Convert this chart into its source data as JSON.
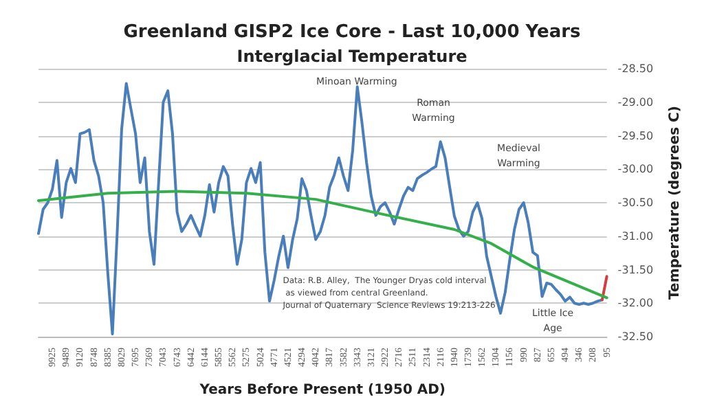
{
  "chart_data": {
    "type": "line",
    "title": "Greenland GISP2 Ice Core - Last 10,000 Years",
    "subtitle": "Interglacial Temperature",
    "xlabel": "Years Before Present (1950 AD)",
    "ylabel": "Temperature (degrees C)",
    "categories": [
      null,
      null,
      null,
      "9925",
      null,
      null,
      "9489",
      null,
      null,
      "9120",
      null,
      null,
      "8748",
      null,
      null,
      "8385",
      null,
      null,
      "8029",
      null,
      null,
      "7695",
      null,
      null,
      "7369",
      null,
      null,
      "7043",
      null,
      null,
      "6743",
      null,
      null,
      "6442",
      null,
      null,
      "6144",
      null,
      null,
      "5855",
      null,
      null,
      "5562",
      null,
      null,
      "5275",
      null,
      null,
      "5024",
      null,
      null,
      "4771",
      null,
      null,
      "4521",
      null,
      null,
      "4294",
      null,
      null,
      "4042",
      null,
      null,
      "3817",
      null,
      null,
      "3582",
      null,
      null,
      "3343",
      null,
      null,
      "3121",
      null,
      null,
      "2922",
      null,
      null,
      "2716",
      null,
      null,
      "2511",
      null,
      null,
      "2314",
      null,
      null,
      "2116",
      null,
      null,
      "1940",
      null,
      null,
      "1739",
      null,
      null,
      "1562",
      null,
      null,
      "1304",
      null,
      null,
      "1156",
      null,
      null,
      "990",
      null,
      null,
      "827",
      null,
      null,
      "655",
      null,
      null,
      "494",
      null,
      null,
      "346",
      null,
      null,
      "208",
      null,
      null,
      "95"
    ],
    "series": [
      {
        "color": "#4a7ebb",
        "values": [
          -30.96,
          -30.6,
          -30.5,
          -30.3,
          -29.87,
          -30.72,
          -30.2,
          -29.99,
          -30.2,
          -29.47,
          -29.45,
          -29.41,
          -29.87,
          -30.1,
          -30.5,
          -31.55,
          -32.46,
          -31.0,
          -29.4,
          -28.72,
          -29.1,
          -29.47,
          -30.2,
          -29.83,
          -30.93,
          -31.42,
          -30.2,
          -29.0,
          -28.83,
          -29.47,
          -30.64,
          -30.93,
          -30.82,
          -30.69,
          -30.85,
          -31.0,
          -30.69,
          -30.23,
          -30.64,
          -30.2,
          -29.96,
          -30.1,
          -30.82,
          -31.42,
          -31.05,
          -30.2,
          -29.99,
          -30.2,
          -29.9,
          -31.24,
          -31.97,
          -31.66,
          -31.3,
          -31.0,
          -31.47,
          -31.05,
          -30.74,
          -30.14,
          -30.32,
          -30.7,
          -31.05,
          -30.93,
          -30.69,
          -30.27,
          -30.09,
          -29.83,
          -30.1,
          -30.32,
          -29.72,
          -28.77,
          -29.3,
          -29.9,
          -30.4,
          -30.69,
          -30.56,
          -30.5,
          -30.64,
          -30.82,
          -30.6,
          -30.4,
          -30.27,
          -30.32,
          -30.14,
          -30.09,
          -30.05,
          -30.0,
          -29.96,
          -29.59,
          -29.83,
          -30.27,
          -30.7,
          -30.9,
          -31.0,
          -30.93,
          -30.64,
          -30.5,
          -30.74,
          -31.3,
          -31.6,
          -31.9,
          -32.15,
          -31.84,
          -31.35,
          -30.9,
          -30.6,
          -30.5,
          -30.8,
          -31.24,
          -31.29,
          -31.9,
          -31.7,
          -31.72,
          -31.8,
          -31.87,
          -31.97,
          -31.91,
          -32.0,
          -32.02,
          -32.0,
          -32.02,
          -32.0,
          -31.97,
          -31.95,
          null
        ]
      },
      {
        "color": "#d04040",
        "values": [
          null,
          null,
          null,
          null,
          null,
          null,
          null,
          null,
          null,
          null,
          null,
          null,
          null,
          null,
          null,
          null,
          null,
          null,
          null,
          null,
          null,
          null,
          null,
          null,
          null,
          null,
          null,
          null,
          null,
          null,
          null,
          null,
          null,
          null,
          null,
          null,
          null,
          null,
          null,
          null,
          null,
          null,
          null,
          null,
          null,
          null,
          null,
          null,
          null,
          null,
          null,
          null,
          null,
          null,
          null,
          null,
          null,
          null,
          null,
          null,
          null,
          null,
          null,
          null,
          null,
          null,
          null,
          null,
          null,
          null,
          null,
          null,
          null,
          null,
          null,
          null,
          null,
          null,
          null,
          null,
          null,
          null,
          null,
          null,
          null,
          null,
          null,
          null,
          null,
          null,
          null,
          null,
          null,
          null,
          null,
          null,
          null,
          null,
          null,
          null,
          null,
          null,
          null,
          null,
          null,
          null,
          null,
          null,
          null,
          null,
          null,
          null,
          null,
          null,
          null,
          null,
          null,
          null,
          null,
          null,
          null,
          null,
          -31.95,
          -31.6
        ]
      },
      {
        "color": "#33b04a",
        "values": [
          -30.47,
          null,
          null,
          null,
          null,
          null,
          null,
          null,
          null,
          null,
          null,
          null,
          null,
          null,
          null,
          -30.36,
          null,
          null,
          null,
          null,
          null,
          null,
          null,
          null,
          null,
          null,
          null,
          null,
          null,
          null,
          -30.33,
          null,
          null,
          null,
          null,
          null,
          null,
          null,
          null,
          null,
          null,
          null,
          null,
          null,
          null,
          -30.36,
          null,
          null,
          null,
          null,
          null,
          null,
          null,
          null,
          null,
          null,
          null,
          null,
          null,
          null,
          -30.45,
          null,
          null,
          null,
          null,
          null,
          null,
          null,
          null,
          null,
          null,
          null,
          null,
          -30.65,
          null,
          null,
          null,
          null,
          null,
          null,
          null,
          null,
          null,
          null,
          null,
          null,
          null,
          null,
          null,
          null,
          -30.9,
          null,
          null,
          null,
          null,
          null,
          null,
          null,
          -31.11,
          null,
          null,
          null,
          null,
          null,
          null,
          null,
          null,
          -31.46,
          null,
          null,
          null,
          null,
          null,
          null,
          null,
          null,
          null,
          null,
          null,
          null,
          null,
          null,
          null,
          -31.92
        ]
      }
    ],
    "ylim": [
      -32.5,
      -28.5
    ],
    "yticks": [
      {
        "value": -32.5,
        "label": "-32.50"
      },
      {
        "value": -32,
        "label": "-32.00"
      },
      {
        "value": -31.5,
        "label": "-31.50"
      },
      {
        "value": -31,
        "label": "-31.00"
      },
      {
        "value": -30.5,
        "label": "-30.50"
      },
      {
        "value": -30,
        "label": "-30.00"
      },
      {
        "value": -29.5,
        "label": "-29.50"
      },
      {
        "value": -29,
        "label": "-29.00"
      },
      {
        "value": -28.5,
        "label": "-28.50"
      }
    ],
    "grid": "y",
    "marker": "none",
    "line_style": "solid",
    "annotations": [
      "Minoan Warming",
      "Roman\nWarming",
      "Medieval\nWarming",
      "Little Ice\nAge",
      "Data: R.B. Alley,  The Younger Dryas cold interval\n as viewed from central Greenland.\nJournal of Quaternary  Science Reviews 19:213-226"
    ]
  }
}
